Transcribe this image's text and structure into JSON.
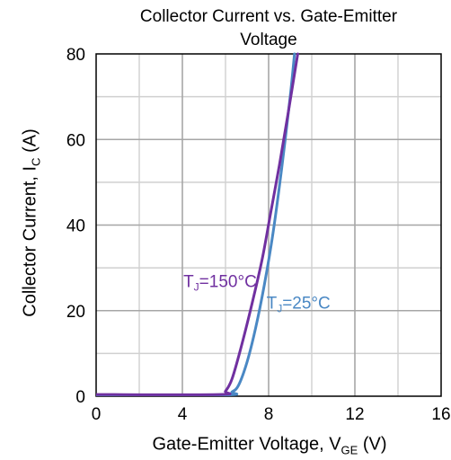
{
  "chart_data": {
    "type": "line",
    "title": "Collector Current vs. Gate-Emitter Voltage",
    "title_line1": "Collector Current vs. Gate-Emitter",
    "title_line2": "Voltage",
    "xlabel_main": "Gate-Emitter Voltage, V",
    "xlabel_sub": "GE",
    "xlabel_unit": " (V)",
    "ylabel_main": "Collector Current, I",
    "ylabel_sub": "C",
    "ylabel_unit": " (A)",
    "xlim": [
      0,
      16
    ],
    "ylim": [
      0,
      80
    ],
    "xticks": [
      "0",
      "4",
      "8",
      "12",
      "16"
    ],
    "yticks": [
      "0",
      "20",
      "40",
      "60",
      "80"
    ],
    "grid": true,
    "series": [
      {
        "name": "TJ=25°C",
        "label_main": "T",
        "label_sub": "J",
        "label_rest": "=25°C",
        "color": "#4a88c4",
        "x": [
          0,
          6.0,
          6.3,
          6.6,
          7.0,
          7.4,
          7.8,
          8.2,
          8.6,
          9.0,
          9.2
        ],
        "y": [
          0.3,
          0.3,
          1.0,
          2.5,
          8.0,
          16.0,
          26.0,
          38.0,
          53.0,
          70.0,
          80.0
        ]
      },
      {
        "name": "TJ=150°C",
        "label_main": "T",
        "label_sub": "J",
        "label_rest": "=150°C",
        "color": "#7030a0",
        "x": [
          0,
          5.7,
          6.0,
          6.3,
          6.7,
          7.2,
          7.7,
          8.1,
          8.5,
          8.9,
          9.35
        ],
        "y": [
          0.4,
          0.4,
          1.2,
          4.0,
          11.0,
          21.0,
          32.0,
          43.0,
          54.0,
          66.0,
          80.0
        ]
      }
    ]
  }
}
